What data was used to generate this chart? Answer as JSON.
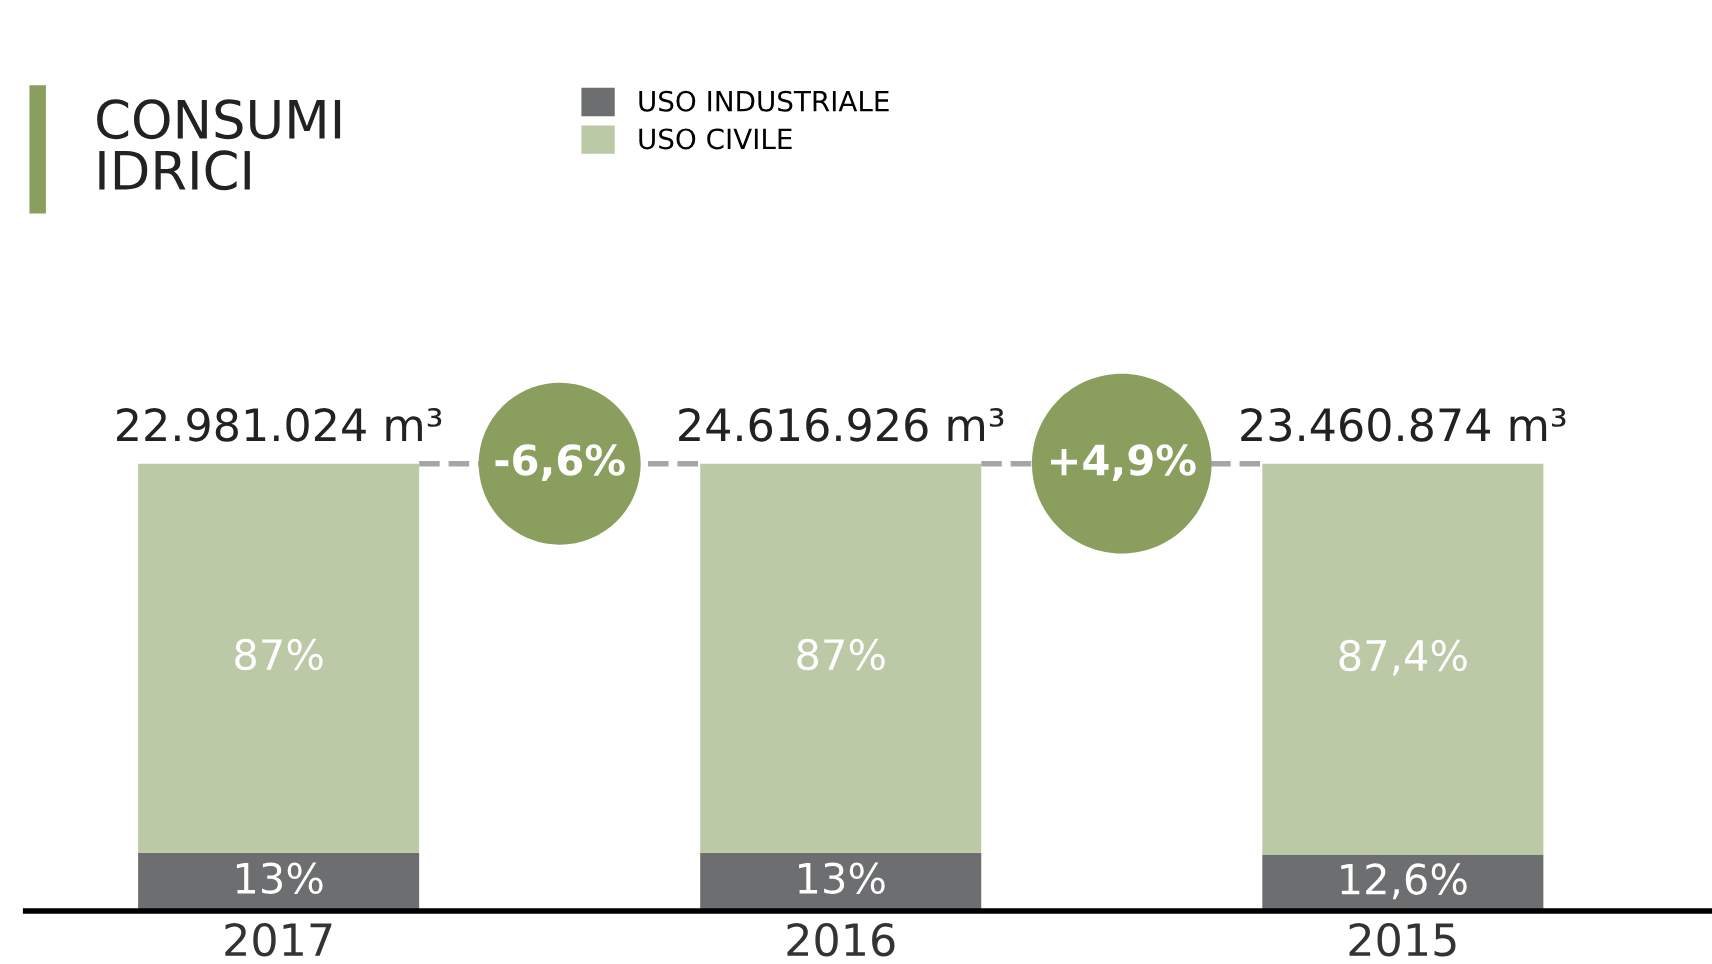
{
  "chart_data": {
    "type": "bar",
    "title": "CONSUMI\nIDRICI",
    "stacked": true,
    "legend": "top left",
    "grid": false,
    "categories": [
      "2017",
      "2016",
      "2015"
    ],
    "series": [
      {
        "name": "USO INDUSTRIALE",
        "color": "#6d6e70",
        "values": [
          13,
          13,
          12.6
        ],
        "value_labels": [
          "13%",
          "13%",
          "12,6%"
        ]
      },
      {
        "name": "USO CIVILE",
        "color": "#bcc9a6",
        "values": [
          87,
          87,
          87.4
        ],
        "value_labels": [
          "87%",
          "87%",
          "87,4%"
        ]
      }
    ],
    "annotations": [
      {
        "text": "22.981.024 m³",
        "x": "2017",
        "y": 100
      },
      {
        "text": "24.616.926 m³",
        "x": "2016",
        "y": 100
      },
      {
        "text": "23.460.874 m³",
        "x": "2015",
        "y": 100
      },
      "-6,6%",
      "+4,9%"
    ]
  }
}
